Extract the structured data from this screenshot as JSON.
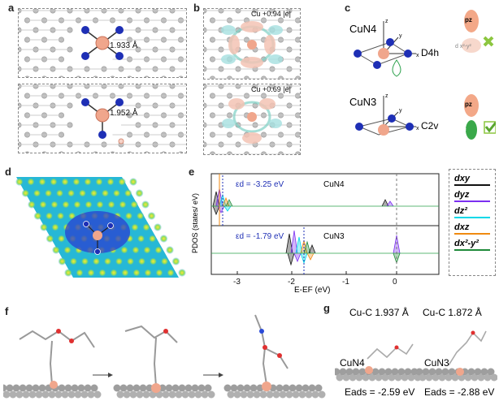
{
  "panels": {
    "a": {
      "letter": "a",
      "top_bond": "1.933 Å",
      "bottom_bond": "1.952 Å"
    },
    "b": {
      "letter": "b",
      "top_charge": "Cu +0.94 |e|",
      "bottom_charge": "Cu +0.69 |e|"
    },
    "c": {
      "letter": "c",
      "top_label": "CuN4",
      "top_symmetry": "D4h",
      "bottom_label": "CuN3",
      "bottom_symmetry": "C2v",
      "pz": "pz",
      "orbital_top": "d x²-y²",
      "orbital_bottom": "d z²"
    },
    "d": {
      "letter": "d"
    },
    "e": {
      "letter": "e",
      "ylabel": "PDOS (states/ eV)",
      "xlabel": "E-EF (eV)",
      "top_center_label": "εd = -3.25 eV",
      "top_system": "CuN4",
      "bottom_center_label": "εd = -1.79 eV",
      "bottom_system": "CuN3",
      "xticks": [
        "-3",
        "-2",
        "-1",
        "0"
      ],
      "legend": [
        "dxy",
        "dyz",
        "dz²",
        "dxz",
        "dx²-y²"
      ]
    },
    "f": {
      "letter": "f"
    },
    "g": {
      "letter": "g",
      "left_bond": "Cu-C 1.937 Å",
      "right_bond": "Cu-C 1.872 Å",
      "left_system": "CuN4",
      "right_system": "CuN3",
      "left_energy": "Eads = -2.59 eV",
      "right_energy": "Eads = -2.88 eV"
    }
  },
  "colors": {
    "cu": "#f0a68c",
    "n": "#1e2fb5",
    "c_atom": "#b5b5b5",
    "dxy": "#111111",
    "dyz": "#7b2ff0",
    "dz2": "#00d8e8",
    "dxz": "#f08a10",
    "dx2y2": "#1f8a3a"
  }
}
